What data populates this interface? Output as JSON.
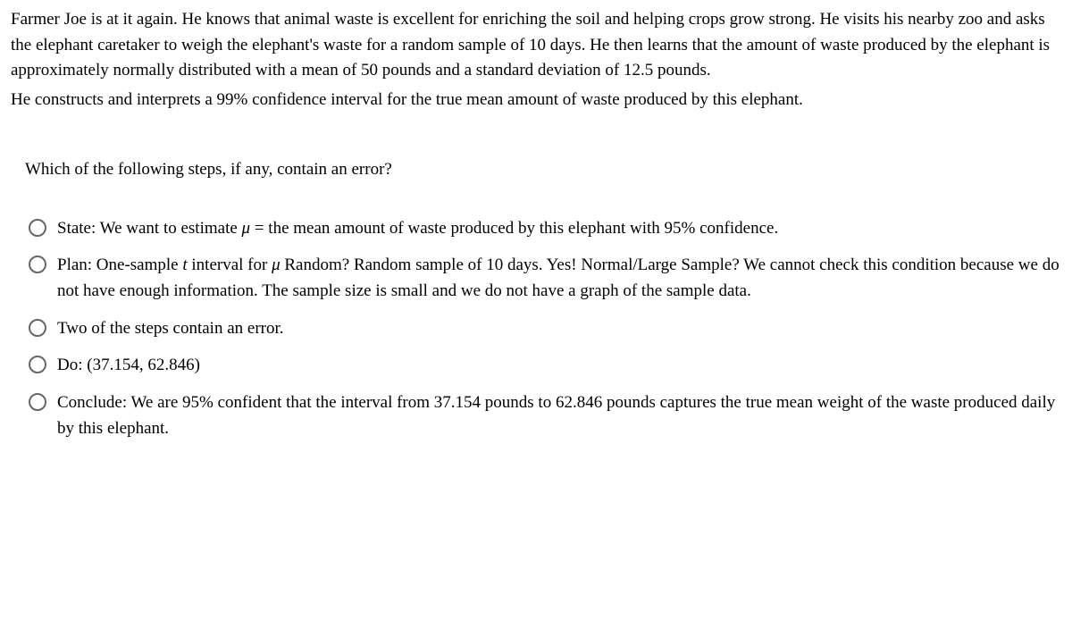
{
  "problem": {
    "paragraph1": "Farmer Joe is at it again. He knows that animal waste is excellent for enriching the soil and helping crops grow strong. He visits his nearby zoo and asks the elephant caretaker to weigh the elephant's waste for a random sample of 10 days. He then learns that the amount of waste produced by the elephant is approximately normally distributed with a mean of 50 pounds and a standard deviation of 12.5 pounds.",
    "paragraph2": "He constructs and interprets a 99% confidence interval for the true mean amount of waste produced by this elephant."
  },
  "question": "Which of the following steps, if any, contain an error?",
  "options": {
    "a": {
      "prefix": "State: We want to estimate ",
      "mu": "μ",
      "suffix": " = the mean amount of waste produced by this elephant with 95% confidence."
    },
    "b": {
      "prefix": "Plan: One-sample ",
      "t": "t",
      "mid": " interval for ",
      "mu": "μ",
      "suffix": " Random? Random sample of 10 days. Yes! Normal/Large Sample? We cannot check this condition because we do not have enough information. The sample size is small and we do not have a graph of the sample data."
    },
    "c": "Two of the steps contain an error.",
    "d": "Do: (37.154, 62.846)",
    "e": "Conclude: We are 95% confident that the interval from 37.154 pounds to 62.846 pounds captures the true mean weight of the waste produced daily by this elephant."
  },
  "styling": {
    "font_family": "Times New Roman",
    "body_fontsize": 19,
    "text_color": "#000000",
    "background_color": "#ffffff",
    "radio_border_color": "#666666",
    "radio_size": 20
  }
}
